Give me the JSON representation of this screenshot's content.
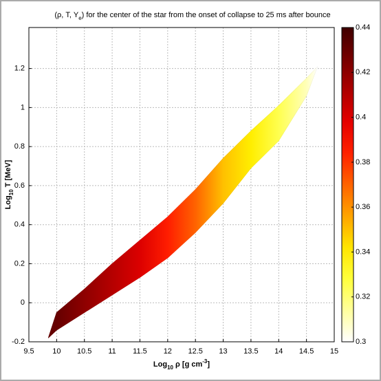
{
  "chart_data": {
    "type": "band",
    "title": [
      "(ρ, T, Y",
      "e",
      ") for the center of the star from the onset of collapse to 25 ms after bounce"
    ],
    "x_label": [
      "Log",
      "10",
      " ρ [g cm",
      "-3",
      "]"
    ],
    "y_label": [
      "Log",
      "10",
      " T  [MeV]"
    ],
    "x": [
      9.85,
      10,
      10.5,
      11,
      11.5,
      12,
      12.5,
      13,
      13.5,
      14,
      14.5,
      14.7
    ],
    "upper": [
      -0.18,
      -0.05,
      0.07,
      0.2,
      0.32,
      0.44,
      0.58,
      0.74,
      0.88,
      1.01,
      1.15,
      1.21
    ],
    "lower": [
      -0.18,
      -0.14,
      -0.05,
      0.04,
      0.13,
      0.23,
      0.36,
      0.51,
      0.69,
      0.83,
      1.06,
      1.21
    ],
    "ye": [
      0.43,
      0.43,
      0.42,
      0.41,
      0.4,
      0.385,
      0.37,
      0.35,
      0.34,
      0.325,
      0.31,
      0.3
    ],
    "xlim": [
      9.5,
      15
    ],
    "xticks": [
      9.5,
      10,
      10.5,
      11,
      11.5,
      12,
      12.5,
      13,
      13.5,
      14,
      14.5,
      15
    ],
    "ylim": [
      -0.2,
      1.41
    ],
    "yticks": [
      -0.2,
      0,
      0.2,
      0.4,
      0.6,
      0.8,
      1,
      1.2
    ],
    "grid": true,
    "colormap": "hot",
    "clim": [
      0.3,
      0.44
    ],
    "cticks": [
      0.3,
      0.32,
      0.34,
      0.36,
      0.38,
      0.4,
      0.42,
      0.44
    ]
  }
}
